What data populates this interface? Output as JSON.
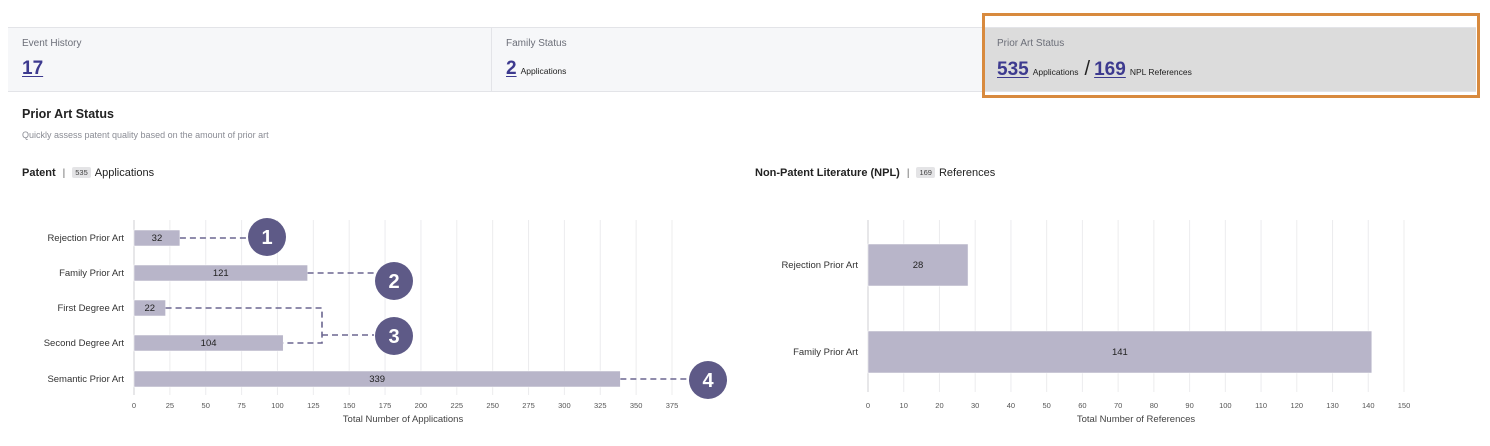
{
  "stats": [
    {
      "label": "Event History",
      "value": "17",
      "unit": ""
    },
    {
      "label": "Family Status",
      "value": "2",
      "unit": "Applications"
    },
    {
      "label": "Prior Art Status",
      "value": "535",
      "unit": "Applications",
      "separator": "/",
      "value2": "169",
      "unit2": "NPL References"
    }
  ],
  "section": {
    "title": "Prior Art Status",
    "subtitle": "Quickly assess patent quality based on the amount of prior art"
  },
  "panels": {
    "patent": {
      "title": "Patent",
      "separator": "|",
      "count": "535",
      "count_label": "Applications"
    },
    "npl": {
      "title": "Non-Patent Literature (NPL)",
      "separator": "|",
      "count": "169",
      "count_label": "References"
    }
  },
  "chart_data": [
    {
      "type": "bar",
      "orientation": "horizontal",
      "categories": [
        "Rejection Prior Art",
        "Family Prior Art",
        "First Degree Art",
        "Second Degree Art",
        "Semantic Prior Art"
      ],
      "values": [
        32,
        121,
        22,
        104,
        339
      ],
      "xlabel": "Total Number of Applications",
      "xlim": [
        0,
        375
      ],
      "xticks": [
        0,
        25,
        50,
        75,
        100,
        125,
        150,
        175,
        200,
        225,
        250,
        275,
        300,
        325,
        350,
        375
      ],
      "grid": true,
      "bar_color": "#b8b5c9",
      "annotations": [
        "1",
        "2",
        "3",
        "4"
      ]
    },
    {
      "type": "bar",
      "orientation": "horizontal",
      "categories": [
        "Rejection Prior Art",
        "Family Prior Art"
      ],
      "values": [
        28,
        141
      ],
      "xlabel": "Total Number of References",
      "xlim": [
        0,
        150
      ],
      "xticks": [
        0,
        10,
        20,
        30,
        40,
        50,
        60,
        70,
        80,
        90,
        100,
        110,
        120,
        130,
        140,
        150
      ],
      "grid": true,
      "bar_color": "#b8b5c9"
    }
  ],
  "colors": {
    "accent": "#3d3a8f",
    "highlight": "#d88a3e",
    "marker": "#5e5a87",
    "bar": "#b8b5c9"
  }
}
